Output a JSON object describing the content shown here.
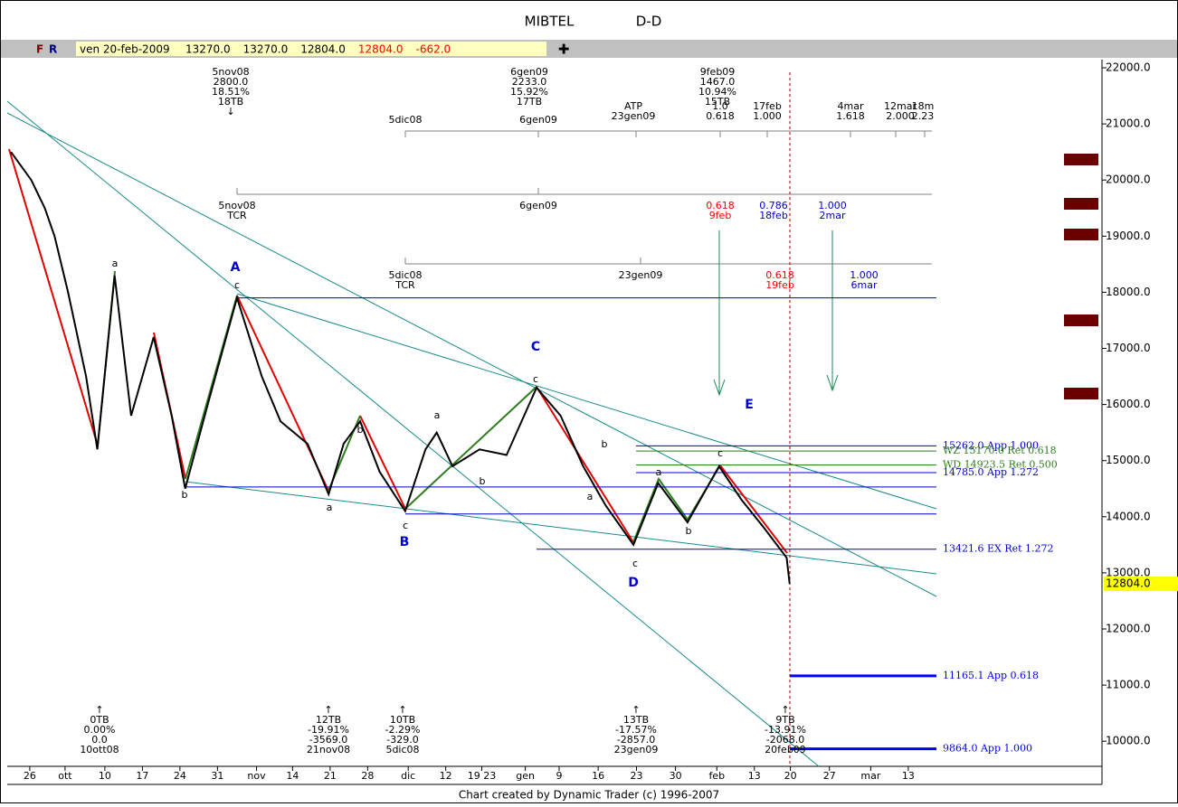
{
  "header": {
    "title": "MIBTEL",
    "subtitle": "D-D"
  },
  "toolbar": {
    "buttons": [
      "F",
      "R"
    ],
    "date": "ven 20-feb-2009",
    "fields": [
      {
        "text": "13270.0",
        "color": "#000000"
      },
      {
        "text": "13270.0",
        "color": "#000000"
      },
      {
        "text": "12804.0",
        "color": "#000000"
      },
      {
        "text": "12804.0",
        "color": "#ff0000"
      },
      {
        "text": "-662.0",
        "color": "#ff0000"
      }
    ]
  },
  "chart_data": {
    "type": "line",
    "color": "#000000",
    "x": [
      -2.5,
      0.2,
      2.0,
      3.3,
      5.1,
      7.5,
      9.0,
      11.3,
      13.5,
      16.5,
      18.9,
      20.7,
      23.7,
      27.6,
      30.9,
      33.4,
      37.0,
      39.8,
      41.8,
      44.0,
      46.6,
      50.0,
      52.7,
      54.2,
      56.3,
      59.9,
      63.5,
      67.5,
      70.7,
      73.7,
      76.7,
      80.4,
      83.7,
      87.6,
      91.8,
      94.8,
      97.8,
      100.8,
      101.2
    ],
    "values": [
      20500,
      20000,
      19500,
      19000,
      18000,
      16500,
      15200,
      18300,
      15800,
      17200,
      15800,
      14500,
      16000,
      17900,
      16500,
      15700,
      15300,
      14400,
      15300,
      15700,
      14800,
      14100,
      15200,
      15500,
      14900,
      15200,
      15100,
      16300,
      15800,
      14900,
      14200,
      13500,
      14600,
      13900,
      14900,
      14300,
      13800,
      13270,
      12804
    ],
    "xlim": [
      -3,
      142.8
    ],
    "ylim": [
      9552,
      22113
    ],
    "xticks": [
      {
        "value": 0,
        "label": "26"
      },
      {
        "value": 4.7,
        "label": "ott"
      },
      {
        "value": 10,
        "label": "10"
      },
      {
        "value": 15,
        "label": "17"
      },
      {
        "value": 20,
        "label": "24"
      },
      {
        "value": 25,
        "label": "31"
      },
      {
        "value": 30.2,
        "label": "nov"
      },
      {
        "value": 35,
        "label": "14"
      },
      {
        "value": 40,
        "label": "21"
      },
      {
        "value": 45,
        "label": "28"
      },
      {
        "value": 50.4,
        "label": "dic"
      },
      {
        "value": 55.4,
        "label": "12"
      },
      {
        "value": 60.2,
        "label": "19 23"
      },
      {
        "value": 66,
        "label": "gen"
      },
      {
        "value": 70.5,
        "label": "9"
      },
      {
        "value": 75.7,
        "label": "16"
      },
      {
        "value": 80.8,
        "label": "23"
      },
      {
        "value": 86,
        "label": "30"
      },
      {
        "value": 91.5,
        "label": "feb"
      },
      {
        "value": 96.5,
        "label": "13"
      },
      {
        "value": 101.3,
        "label": "20"
      },
      {
        "value": 106.5,
        "label": "27"
      },
      {
        "value": 112,
        "label": "mar"
      },
      {
        "value": 117,
        "label": "13"
      }
    ],
    "yticks": [
      {
        "value": 22000,
        "label": "22000.0"
      },
      {
        "value": 21000,
        "label": "21000.0"
      },
      {
        "value": 20000,
        "label": "20000.0"
      },
      {
        "value": 19000,
        "label": "19000.0"
      },
      {
        "value": 18000,
        "label": "18000.0"
      },
      {
        "value": 17000,
        "label": "17000.0"
      },
      {
        "value": 16000,
        "label": "16000.0"
      },
      {
        "value": 15000,
        "label": "15000.0"
      },
      {
        "value": 14000,
        "label": "14000.0"
      },
      {
        "value": 13000,
        "label": "13000.0"
      },
      {
        "value": 12000,
        "label": "12000.0"
      },
      {
        "value": 11000,
        "label": "11000.0"
      },
      {
        "value": 10000,
        "label": "10000.0"
      }
    ],
    "last_price": {
      "value": 12804,
      "label": "12804.0"
    },
    "levels": [
      {
        "value": 17900,
        "color": "#0000cc"
      },
      {
        "value": 14530,
        "color": "#0000cc"
      },
      {
        "value": 14050,
        "color": "#0000cc"
      },
      {
        "value": 15262,
        "label": "15262.0 App 1.000",
        "color": "#0000cc"
      },
      {
        "value": 15170,
        "label": "WZ 15170.0 Ret 0.618",
        "color": "#2e7d1e"
      },
      {
        "value": 14923.5,
        "label": "WD 14923.5 Ret 0.500",
        "color": "#2e7d1e"
      },
      {
        "value": 14785,
        "label": "14785.0 App 1.272",
        "color": "#0000cc"
      },
      {
        "value": 13421.6,
        "label": "13421.6 EX Ret 1.272",
        "color": "#0000cc"
      },
      {
        "value": 11165.1,
        "label": "11165.1 App 0.618",
        "color": "#0000ff"
      },
      {
        "value": 9864,
        "label": "9864.0 App 1.000",
        "color": "#0000ff"
      }
    ],
    "annotations": [
      {
        "lines": [
          "5nov08",
          "2800.0",
          "18.51%",
          "18TB",
          "↓"
        ],
        "color": "#000000"
      },
      {
        "lines": [
          "6gen09",
          "2233.0",
          "15.92%",
          "17TB"
        ],
        "color": "#000000"
      },
      {
        "lines": [
          "9feb09",
          "1467.0",
          "10.94%",
          "15TB"
        ],
        "color": "#000000"
      },
      {
        "lines": [
          "5dic08"
        ],
        "color": "#000000"
      },
      {
        "lines": [
          "6gen09"
        ],
        "color": "#000000"
      },
      {
        "lines": [
          "ATP",
          "23gen09"
        ],
        "color": "#000000"
      },
      {
        "lines": [
          "1.0",
          "0.618"
        ],
        "color": "#000000"
      },
      {
        "lines": [
          "17feb",
          "1.000"
        ],
        "color": "#000000"
      },
      {
        "lines": [
          "4mar",
          "1.618"
        ],
        "color": "#000000"
      },
      {
        "lines": [
          "12mar",
          "2.000"
        ],
        "color": "#000000"
      },
      {
        "lines": [
          "18m",
          "2.23"
        ],
        "color": "#000000"
      },
      {
        "lines": [
          "5nov08",
          "TCR"
        ],
        "color": "#000000"
      },
      {
        "lines": [
          "6gen09"
        ],
        "color": "#000000"
      },
      {
        "lines": [
          "0.618",
          "9feb"
        ],
        "color": "#ff0000"
      },
      {
        "lines": [
          "0.786",
          "18feb"
        ],
        "color": "#0000cc"
      },
      {
        "lines": [
          "1.000",
          "2mar"
        ],
        "color": "#0000cc"
      },
      {
        "lines": [
          "5dic08",
          "TCR"
        ],
        "color": "#000000"
      },
      {
        "lines": [
          "23gen09"
        ],
        "color": "#000000"
      },
      {
        "lines": [
          "0.618",
          "19feb"
        ],
        "color": "#ff0000"
      },
      {
        "lines": [
          "1.000",
          "6mar"
        ],
        "color": "#0000cc"
      },
      {
        "lines": [
          "↑",
          "0TB",
          "0.00%",
          "0.0",
          "10ott08"
        ],
        "color": "#000000"
      },
      {
        "lines": [
          "↑",
          "12TB",
          "-19.91%",
          "-3569.0",
          "21nov08"
        ],
        "color": "#000000"
      },
      {
        "lines": [
          "↑",
          "10TB",
          "-2.29%",
          "-329.0",
          "5dic08"
        ],
        "color": "#000000"
      },
      {
        "lines": [
          "↑",
          "13TB",
          "-17.57%",
          "-2857.0",
          "23gen09"
        ],
        "color": "#000000"
      },
      {
        "lines": [
          "↑",
          "9TB",
          "-13.91%",
          "-2068.0",
          "20feb09"
        ],
        "color": "#000000"
      }
    ],
    "waves": [
      {
        "text": "A",
        "color": "#0000cc"
      },
      {
        "text": "B",
        "color": "#0000cc"
      },
      {
        "text": "C",
        "color": "#0000cc"
      },
      {
        "text": "D",
        "color": "#0000cc"
      },
      {
        "text": "E",
        "color": "#0000cc"
      },
      {
        "text": "a",
        "color": "#000000"
      },
      {
        "text": "b",
        "color": "#000000"
      },
      {
        "text": "c",
        "color": "#000000"
      },
      {
        "text": "b",
        "color": "#000000"
      },
      {
        "text": "a",
        "color": "#000000"
      },
      {
        "text": "c",
        "color": "#000000"
      },
      {
        "text": "a",
        "color": "#000000"
      },
      {
        "text": "b",
        "color": "#000000"
      },
      {
        "text": "c",
        "color": "#000000"
      },
      {
        "text": "b",
        "color": "#000000"
      },
      {
        "text": "a",
        "color": "#000000"
      },
      {
        "text": "c",
        "color": "#000000"
      },
      {
        "text": "a",
        "color": "#000000"
      },
      {
        "text": "b",
        "color": "#000000"
      },
      {
        "text": "c",
        "color": "#000000"
      }
    ]
  },
  "footer": "Chart created by Dynamic Trader (c) 1996-2007"
}
